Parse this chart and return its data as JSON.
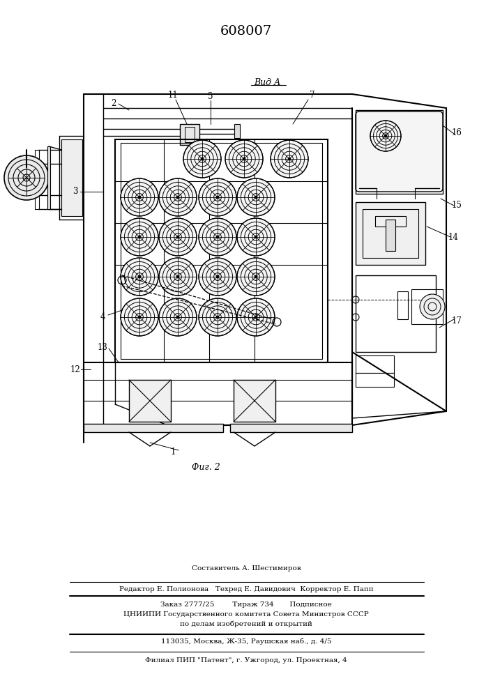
{
  "patent_number": "608007",
  "bg_color": "#ffffff",
  "lc": "#000000",
  "footer": {
    "line1": "Составитель А. Шестимиров",
    "line2": "Редактор Е. Полионова   Техред Е. Давидович  Корректор Е. Папп",
    "line3": "Заказ 2777/25        Тираж 734       Подписное",
    "line4": "ЦНИИПИ Государственного комитета Совета Министров СССР",
    "line5": "по делам изобретений и открытий",
    "line6": "113035, Москва, Ж-35, Раушская наб., д. 4/5",
    "line7": "Филиал ПИП \"Патент\", г. Ужгород, ул. Проектная, 4"
  }
}
